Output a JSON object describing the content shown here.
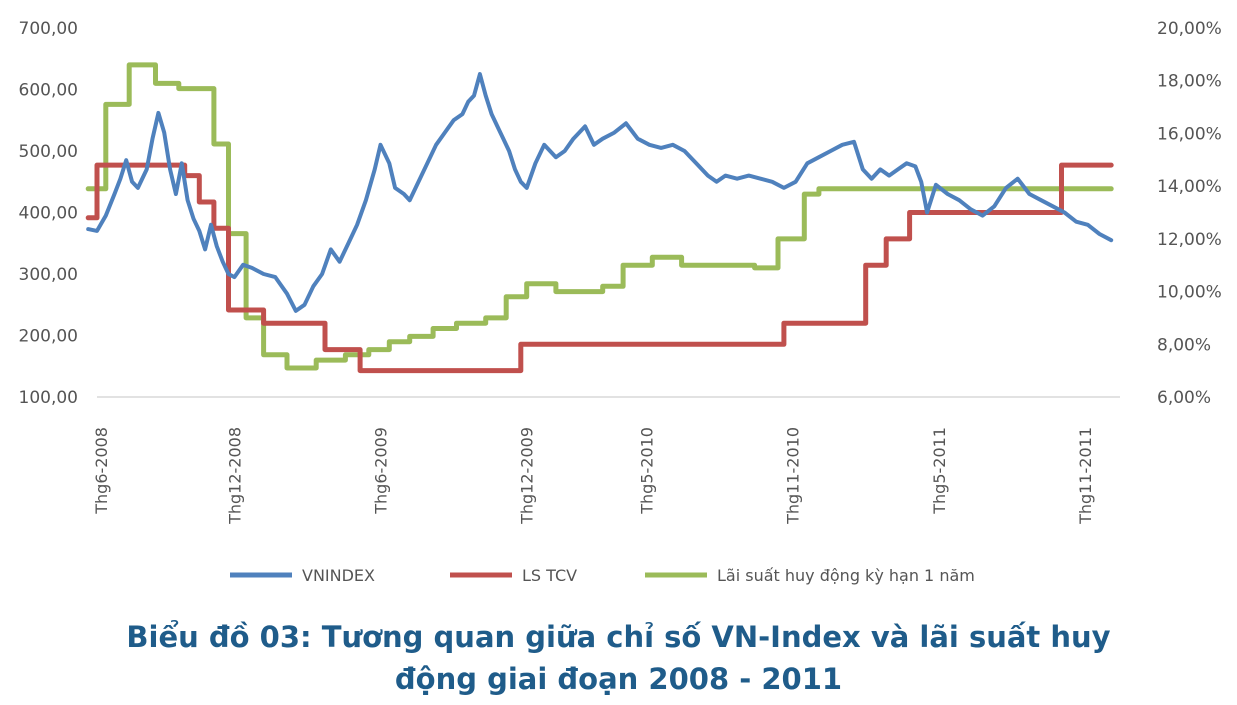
{
  "chart_data": {
    "type": "line",
    "title": "",
    "left_axis": {
      "ylim": [
        100,
        700
      ],
      "ticks": [
        "700,00",
        "600,00",
        "500,00",
        "400,00",
        "300,00",
        "200,00",
        "100,00"
      ],
      "tick_values": [
        700,
        600,
        500,
        400,
        300,
        200,
        100
      ]
    },
    "right_axis": {
      "ylim": [
        6,
        20
      ],
      "ticks": [
        "20,00%",
        "18,00%",
        "16,00%",
        "14,00%",
        "12,00%",
        "10,00%",
        "8,00%",
        "6,00%"
      ],
      "tick_values": [
        20,
        18,
        16,
        14,
        12,
        10,
        8,
        6
      ]
    },
    "x_range": [
      2008.45,
      2011.95
    ],
    "x_ticks": [
      {
        "label": "Thg6-2008",
        "x": 2008.42
      },
      {
        "label": "Thg12-2008",
        "x": 2008.92
      },
      {
        "label": "Thg6-2009",
        "x": 2009.42
      },
      {
        "label": "Thg12-2009",
        "x": 2009.92
      },
      {
        "label": "Thg5-2010",
        "x": 2010.33
      },
      {
        "label": "Thg11-2010",
        "x": 2010.83
      },
      {
        "label": "Thg5-2011",
        "x": 2011.33
      },
      {
        "label": "Thg11-2011",
        "x": 2011.83
      }
    ],
    "series": [
      {
        "name": "VNINDEX",
        "axis": "left",
        "color": "#4f81bd",
        "step": false,
        "points": [
          [
            2008.42,
            373
          ],
          [
            2008.45,
            370
          ],
          [
            2008.48,
            395
          ],
          [
            2008.51,
            430
          ],
          [
            2008.53,
            455
          ],
          [
            2008.55,
            485
          ],
          [
            2008.57,
            450
          ],
          [
            2008.59,
            440
          ],
          [
            2008.62,
            470
          ],
          [
            2008.64,
            520
          ],
          [
            2008.66,
            562
          ],
          [
            2008.68,
            530
          ],
          [
            2008.7,
            470
          ],
          [
            2008.72,
            430
          ],
          [
            2008.74,
            480
          ],
          [
            2008.76,
            420
          ],
          [
            2008.78,
            390
          ],
          [
            2008.8,
            370
          ],
          [
            2008.82,
            340
          ],
          [
            2008.84,
            380
          ],
          [
            2008.86,
            345
          ],
          [
            2008.88,
            320
          ],
          [
            2008.9,
            300
          ],
          [
            2008.92,
            295
          ],
          [
            2008.95,
            315
          ],
          [
            2008.98,
            310
          ],
          [
            2009.02,
            300
          ],
          [
            2009.06,
            295
          ],
          [
            2009.1,
            268
          ],
          [
            2009.13,
            240
          ],
          [
            2009.16,
            250
          ],
          [
            2009.19,
            280
          ],
          [
            2009.22,
            300
          ],
          [
            2009.25,
            340
          ],
          [
            2009.28,
            320
          ],
          [
            2009.31,
            350
          ],
          [
            2009.34,
            380
          ],
          [
            2009.37,
            420
          ],
          [
            2009.4,
            470
          ],
          [
            2009.42,
            510
          ],
          [
            2009.45,
            480
          ],
          [
            2009.47,
            440
          ],
          [
            2009.5,
            430
          ],
          [
            2009.52,
            420
          ],
          [
            2009.55,
            450
          ],
          [
            2009.58,
            480
          ],
          [
            2009.61,
            510
          ],
          [
            2009.64,
            530
          ],
          [
            2009.67,
            550
          ],
          [
            2009.7,
            560
          ],
          [
            2009.72,
            580
          ],
          [
            2009.74,
            590
          ],
          [
            2009.76,
            625
          ],
          [
            2009.78,
            590
          ],
          [
            2009.8,
            560
          ],
          [
            2009.82,
            540
          ],
          [
            2009.84,
            520
          ],
          [
            2009.86,
            500
          ],
          [
            2009.88,
            470
          ],
          [
            2009.9,
            450
          ],
          [
            2009.92,
            440
          ],
          [
            2009.95,
            480
          ],
          [
            2009.98,
            510
          ],
          [
            2010.02,
            490
          ],
          [
            2010.05,
            500
          ],
          [
            2010.08,
            520
          ],
          [
            2010.12,
            540
          ],
          [
            2010.15,
            510
          ],
          [
            2010.18,
            520
          ],
          [
            2010.22,
            530
          ],
          [
            2010.26,
            545
          ],
          [
            2010.3,
            520
          ],
          [
            2010.34,
            510
          ],
          [
            2010.38,
            505
          ],
          [
            2010.42,
            510
          ],
          [
            2010.46,
            500
          ],
          [
            2010.5,
            480
          ],
          [
            2010.54,
            460
          ],
          [
            2010.57,
            450
          ],
          [
            2010.6,
            460
          ],
          [
            2010.64,
            455
          ],
          [
            2010.68,
            460
          ],
          [
            2010.72,
            455
          ],
          [
            2010.76,
            450
          ],
          [
            2010.8,
            440
          ],
          [
            2010.84,
            450
          ],
          [
            2010.88,
            480
          ],
          [
            2010.92,
            490
          ],
          [
            2010.96,
            500
          ],
          [
            2011.0,
            510
          ],
          [
            2011.04,
            515
          ],
          [
            2011.07,
            470
          ],
          [
            2011.1,
            455
          ],
          [
            2011.13,
            470
          ],
          [
            2011.16,
            460
          ],
          [
            2011.19,
            470
          ],
          [
            2011.22,
            480
          ],
          [
            2011.25,
            475
          ],
          [
            2011.27,
            450
          ],
          [
            2011.29,
            400
          ],
          [
            2011.32,
            445
          ],
          [
            2011.36,
            430
          ],
          [
            2011.4,
            420
          ],
          [
            2011.44,
            405
          ],
          [
            2011.48,
            395
          ],
          [
            2011.52,
            410
          ],
          [
            2011.56,
            440
          ],
          [
            2011.6,
            455
          ],
          [
            2011.64,
            430
          ],
          [
            2011.68,
            420
          ],
          [
            2011.72,
            410
          ],
          [
            2011.76,
            400
          ],
          [
            2011.8,
            385
          ],
          [
            2011.84,
            380
          ],
          [
            2011.88,
            365
          ],
          [
            2011.92,
            355
          ]
        ]
      },
      {
        "name": "LS TCV",
        "axis": "right",
        "color": "#c0504d",
        "step": true,
        "points": [
          [
            2008.42,
            12.8
          ],
          [
            2008.45,
            14.8
          ],
          [
            2008.75,
            14.4
          ],
          [
            2008.8,
            13.4
          ],
          [
            2008.85,
            12.4
          ],
          [
            2008.9,
            9.3
          ],
          [
            2008.95,
            9.3
          ],
          [
            2009.02,
            8.8
          ],
          [
            2009.15,
            8.8
          ],
          [
            2009.23,
            7.8
          ],
          [
            2009.35,
            7.0
          ],
          [
            2009.55,
            7.0
          ],
          [
            2009.72,
            7.0
          ],
          [
            2009.85,
            7.0
          ],
          [
            2009.9,
            8.0
          ],
          [
            2010.1,
            8.0
          ],
          [
            2010.35,
            8.0
          ],
          [
            2010.65,
            8.0
          ],
          [
            2010.8,
            8.8
          ],
          [
            2011.0,
            8.8
          ],
          [
            2011.08,
            11.0
          ],
          [
            2011.15,
            12.0
          ],
          [
            2011.23,
            13.0
          ],
          [
            2011.3,
            13.0
          ],
          [
            2011.42,
            13.0
          ],
          [
            2011.73,
            13.0
          ],
          [
            2011.75,
            14.8
          ],
          [
            2011.92,
            14.8
          ]
        ]
      },
      {
        "name": "Lãi suất huy động kỳ hạn 1 năm",
        "axis": "right",
        "color": "#9bbb59",
        "step": true,
        "points": [
          [
            2008.42,
            13.9
          ],
          [
            2008.48,
            17.1
          ],
          [
            2008.56,
            18.6
          ],
          [
            2008.65,
            17.9
          ],
          [
            2008.73,
            17.7
          ],
          [
            2008.85,
            15.6
          ],
          [
            2008.9,
            12.2
          ],
          [
            2008.96,
            9.0
          ],
          [
            2009.02,
            7.6
          ],
          [
            2009.1,
            7.1
          ],
          [
            2009.2,
            7.4
          ],
          [
            2009.3,
            7.6
          ],
          [
            2009.38,
            7.8
          ],
          [
            2009.45,
            8.1
          ],
          [
            2009.52,
            8.3
          ],
          [
            2009.6,
            8.6
          ],
          [
            2009.68,
            8.8
          ],
          [
            2009.78,
            9.0
          ],
          [
            2009.85,
            9.8
          ],
          [
            2009.92,
            10.3
          ],
          [
            2010.02,
            10.0
          ],
          [
            2010.18,
            10.2
          ],
          [
            2010.25,
            11.0
          ],
          [
            2010.35,
            11.3
          ],
          [
            2010.45,
            11.0
          ],
          [
            2010.6,
            11.0
          ],
          [
            2010.7,
            10.9
          ],
          [
            2010.78,
            12.0
          ],
          [
            2010.87,
            13.7
          ],
          [
            2010.92,
            13.9
          ],
          [
            2011.3,
            13.9
          ],
          [
            2011.6,
            13.9
          ],
          [
            2011.92,
            13.9
          ]
        ]
      }
    ],
    "legend": [
      {
        "label": "VNINDEX",
        "color": "#4f81bd"
      },
      {
        "label": "LS TCV",
        "color": "#c0504d"
      },
      {
        "label": "Lãi suất huy động kỳ hạn 1 năm",
        "color": "#9bbb59"
      }
    ],
    "legend_position": "bottom"
  },
  "caption": {
    "line1": "Biểu đồ 03: Tương quan giữa chỉ số VN-Index và lãi suất huy",
    "line2": "động giai đoạn 2008 - 2011"
  }
}
